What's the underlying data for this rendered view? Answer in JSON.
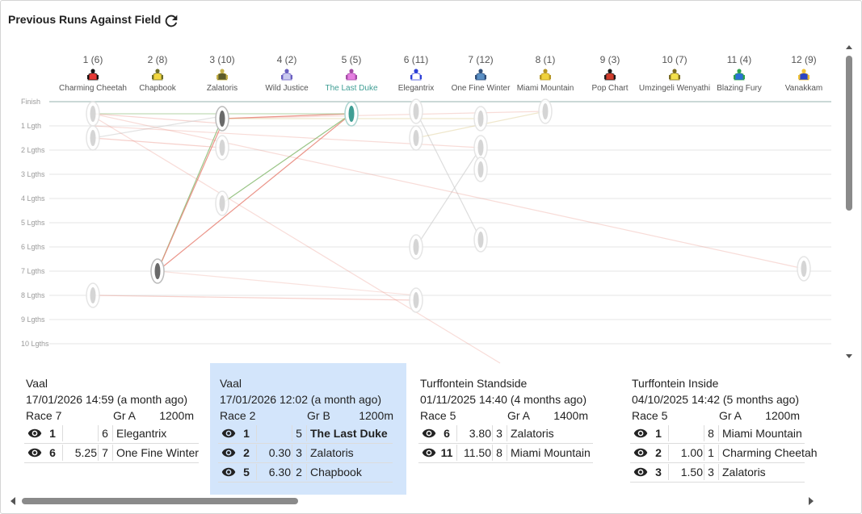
{
  "panel": {
    "title": "Previous Runs Against Field"
  },
  "colors": {
    "selected_bg": "#d3e5fb",
    "highlight_text": "#3f9e94",
    "gridline": "#e4e4e4",
    "finish_line": "#b9cbc8"
  },
  "y_axis_labels": [
    "Finish",
    "1 Lgth",
    "2 Lgths",
    "3 Lgths",
    "4 Lgths",
    "5 Lgths",
    "6 Lgths",
    "7 Lgths",
    "8 Lgths",
    "9 Lgths",
    "10 Lgths"
  ],
  "horses": [
    {
      "header": "1 (6)",
      "name": "Charming Cheetah",
      "silk_body": "#e53935",
      "silk_accent": "#111111"
    },
    {
      "header": "2 (8)",
      "name": "Chapbook",
      "silk_body": "#f2d740",
      "silk_accent": "#6d6d2a"
    },
    {
      "header": "3 (10)",
      "name": "Zalatoris",
      "silk_body": "#5b5b2a",
      "silk_accent": "#c6b24a"
    },
    {
      "header": "4 (2)",
      "name": "Wild Justice",
      "silk_body": "#c9c9ef",
      "silk_accent": "#6a5fc0"
    },
    {
      "header": "5 (5)",
      "name": "The Last Duke",
      "silk_body": "#e57ee0",
      "silk_accent": "#a44ba6"
    },
    {
      "header": "6 (11)",
      "name": "Elegantrix",
      "silk_body": "#ffffff",
      "silk_accent": "#2c3fd6"
    },
    {
      "header": "7 (12)",
      "name": "One Fine Winter",
      "silk_body": "#5a8fc4",
      "silk_accent": "#2f4e78"
    },
    {
      "header": "8 (1)",
      "name": "Miami Mountain",
      "silk_body": "#f0d23c",
      "silk_accent": "#b69625"
    },
    {
      "header": "9 (3)",
      "name": "Pop Chart",
      "silk_body": "#d03c2c",
      "silk_accent": "#1a1a1a"
    },
    {
      "header": "10 (7)",
      "name": "Umzingeli Wenyathi",
      "silk_body": "#f3e04c",
      "silk_accent": "#7a6a20"
    },
    {
      "header": "11 (4)",
      "name": "Blazing Fury",
      "silk_body": "#2a6fd6",
      "silk_accent": "#2aa24a"
    },
    {
      "header": "12 (9)",
      "name": "Vanakkam",
      "silk_body": "#2b44c4",
      "silk_accent": "#f1c232"
    }
  ],
  "races": [
    {
      "venue": "Vaal",
      "when": "17/01/2026 14:59 (a month ago)",
      "race": "Race 7",
      "grade": "Gr A",
      "distance": "1200m",
      "selected": false,
      "results": [
        {
          "pos": "1",
          "margin": "",
          "num": "6",
          "horse": "Elegantrix",
          "bold": false
        },
        {
          "pos": "6",
          "margin": "5.25",
          "num": "7",
          "horse": "One Fine Winter",
          "bold": false
        }
      ]
    },
    {
      "venue": "Vaal",
      "when": "17/01/2026 12:02 (a month ago)",
      "race": "Race 2",
      "grade": "Gr B",
      "distance": "1200m",
      "selected": true,
      "results": [
        {
          "pos": "1",
          "margin": "",
          "num": "5",
          "horse": "The Last Duke",
          "bold": true
        },
        {
          "pos": "2",
          "margin": "0.30",
          "num": "3",
          "horse": "Zalatoris",
          "bold": false
        },
        {
          "pos": "5",
          "margin": "6.30",
          "num": "2",
          "horse": "Chapbook",
          "bold": false
        }
      ]
    },
    {
      "venue": "Turffontein Standside",
      "when": "01/11/2025 14:40 (4 months ago)",
      "race": "Race 5",
      "grade": "Gr A",
      "distance": "1400m",
      "selected": false,
      "results": [
        {
          "pos": "6",
          "margin": "3.80",
          "num": "3",
          "horse": "Zalatoris",
          "bold": false
        },
        {
          "pos": "11",
          "margin": "11.50",
          "num": "8",
          "horse": "Miami Mountain",
          "bold": false
        }
      ]
    },
    {
      "venue": "Turffontein Inside",
      "when": "04/10/2025 14:42 (5 months ago)",
      "race": "Race 5",
      "grade": "Gr A",
      "distance": "1200m",
      "selected": false,
      "results": [
        {
          "pos": "1",
          "margin": "",
          "num": "8",
          "horse": "Miami Mountain",
          "bold": false
        },
        {
          "pos": "2",
          "margin": "1.00",
          "num": "1",
          "horse": "Charming Cheetah",
          "bold": false
        },
        {
          "pos": "3",
          "margin": "1.50",
          "num": "3",
          "horse": "Zalatoris",
          "bold": false
        }
      ]
    }
  ],
  "run_markers": [
    {
      "horse": 1,
      "lengths": 0.5,
      "emph": 1
    },
    {
      "horse": 1,
      "lengths": 1.5,
      "emph": 1
    },
    {
      "horse": 1,
      "lengths": 8.0,
      "emph": 1
    },
    {
      "horse": 2,
      "lengths": 7.0,
      "emph": 3
    },
    {
      "horse": 3,
      "lengths": 0.7,
      "emph": 3
    },
    {
      "horse": 3,
      "lengths": 1.9,
      "emph": 1
    },
    {
      "horse": 3,
      "lengths": 4.2,
      "emph": 1
    },
    {
      "horse": 5,
      "lengths": 0.5,
      "emph": 4
    },
    {
      "horse": 6,
      "lengths": 0.4,
      "emph": 1
    },
    {
      "horse": 6,
      "lengths": 1.5,
      "emph": 1
    },
    {
      "horse": 6,
      "lengths": 6.0,
      "emph": 1
    },
    {
      "horse": 6,
      "lengths": 8.2,
      "emph": 1
    },
    {
      "horse": 7,
      "lengths": 0.7,
      "emph": 1
    },
    {
      "horse": 7,
      "lengths": 1.9,
      "emph": 1
    },
    {
      "horse": 7,
      "lengths": 2.8,
      "emph": 1
    },
    {
      "horse": 7,
      "lengths": 5.7,
      "emph": 1
    },
    {
      "horse": 8,
      "lengths": 0.4,
      "emph": 1
    },
    {
      "horse": 12,
      "lengths": 6.9,
      "emph": 1
    }
  ],
  "run_links": [
    {
      "from": [
        2,
        7.0
      ],
      "to": [
        3,
        0.7
      ],
      "color": "#8fbf7a",
      "opacity": 0.9
    },
    {
      "from": [
        2,
        7.0
      ],
      "to": [
        5,
        0.5
      ],
      "color": "#e98a7d",
      "opacity": 0.9
    },
    {
      "from": [
        3,
        0.7
      ],
      "to": [
        5,
        0.5
      ],
      "color": "#e98a7d",
      "opacity": 0.9
    },
    {
      "from": [
        2,
        7.0
      ],
      "to": [
        3,
        0.9
      ],
      "color": "#e98a7d",
      "opacity": 0.9
    },
    {
      "from": [
        3,
        4.2
      ],
      "to": [
        5,
        0.5
      ],
      "color": "#8fbf7a",
      "opacity": 0.9
    },
    {
      "from": [
        1,
        0.5
      ],
      "to": [
        5,
        0.5
      ],
      "color": "#8fbf7a",
      "opacity": 0.55
    },
    {
      "from": [
        1,
        0.5
      ],
      "to": [
        3,
        0.9
      ],
      "color": "#e98a7d",
      "opacity": 0.35
    },
    {
      "from": [
        1,
        1.5
      ],
      "to": [
        3,
        0.6
      ],
      "color": "#cfcfcf",
      "opacity": 0.6
    },
    {
      "from": [
        1,
        1.5
      ],
      "to": [
        3,
        1.9
      ],
      "color": "#e98a7d",
      "opacity": 0.4
    },
    {
      "from": [
        1,
        8.0
      ],
      "to": [
        6,
        8.2
      ],
      "color": "#e98a7d",
      "opacity": 0.4
    },
    {
      "from": [
        3,
        0.7
      ],
      "to": [
        8,
        0.4
      ],
      "color": "#e98a7d",
      "opacity": 0.3
    },
    {
      "from": [
        3,
        0.7
      ],
      "to": [
        7,
        0.7
      ],
      "color": "#d7c27f",
      "opacity": 0.4
    },
    {
      "from": [
        1,
        1.0
      ],
      "to": [
        7,
        1.9
      ],
      "color": "#e98a7d",
      "opacity": 0.3
    },
    {
      "from": [
        6,
        0.4
      ],
      "to": [
        7,
        5.7
      ],
      "color": "#cfcfcf",
      "opacity": 0.7
    },
    {
      "from": [
        6,
        6.0
      ],
      "to": [
        7,
        1.9
      ],
      "color": "#cfcfcf",
      "opacity": 0.7
    },
    {
      "from": [
        6,
        1.5
      ],
      "to": [
        8,
        0.4
      ],
      "color": "#d7c27f",
      "opacity": 0.4
    },
    {
      "from": [
        1,
        0.5
      ],
      "to": [
        12,
        6.9
      ],
      "color": "#e98a7d",
      "opacity": 0.3
    },
    {
      "from": [
        1,
        0.6
      ],
      "to": [
        7.3,
        10.8
      ],
      "color": "#e98a7d",
      "opacity": 0.3
    },
    {
      "from": [
        2,
        7.0
      ],
      "to": [
        6,
        8.0
      ],
      "color": "#e98a7d",
      "opacity": 0.25
    }
  ]
}
